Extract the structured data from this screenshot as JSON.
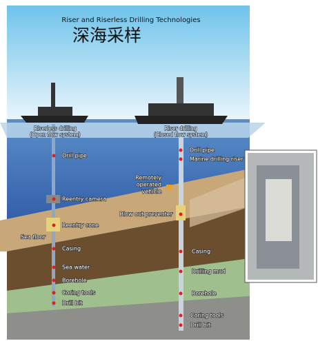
{
  "header": {
    "title": "Riser and Riserless Drilling Technologies",
    "subtitle": "深海采样"
  },
  "ships": [
    {
      "label": "Riserless drilling",
      "sublabel": "(Open flow system)"
    },
    {
      "label": "Riser drilling",
      "sublabel": "(Closed flow system)"
    }
  ],
  "sea_floor": "Sea floor",
  "left_labels": [
    "Drill pipe",
    "Reentry camera",
    "Reentry cone",
    "Casing",
    "Sea water",
    "Borehole",
    "Coring tools",
    "Drill bit"
  ],
  "right_labels": [
    "Drill pipe",
    "Marine drilling riser",
    "Remotely",
    "operated",
    "vehicle",
    "Blow out preventer",
    "Casing",
    "Drilling mud",
    "Borehole",
    "Coring tools",
    "Drill bit"
  ]
}
